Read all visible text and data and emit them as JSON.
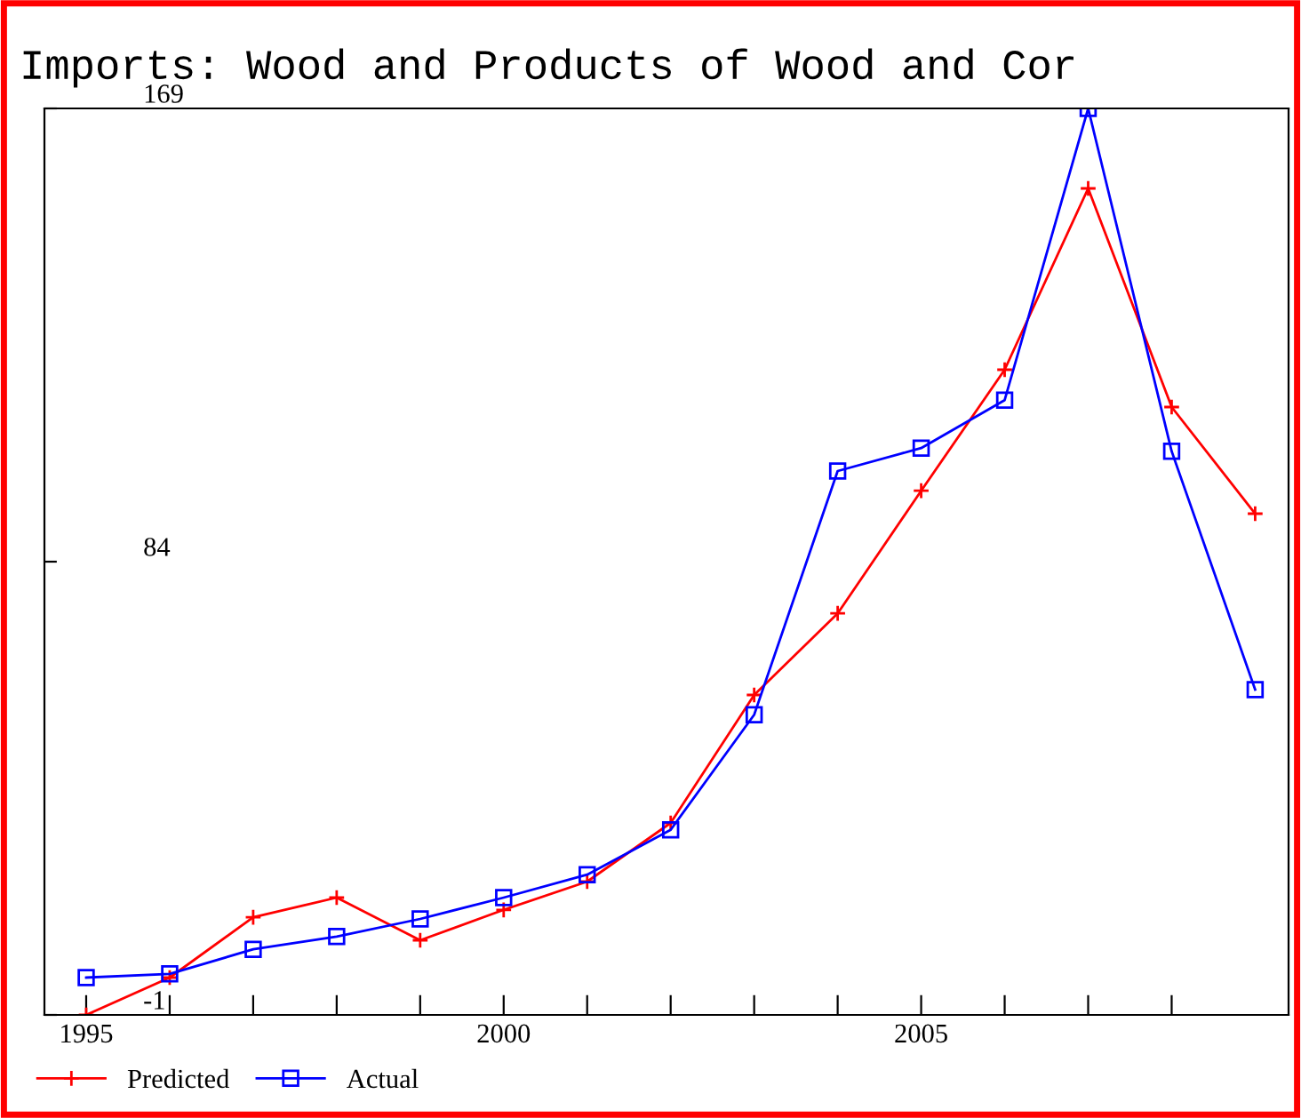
{
  "chart_data": {
    "type": "line",
    "title": "Imports: Wood and Products of Wood and Cor",
    "x": [
      1995,
      1996,
      1997,
      1998,
      1999,
      2000,
      2001,
      2002,
      2003,
      2004,
      2005,
      2006,
      2007,
      2008,
      2009
    ],
    "series": [
      {
        "name": "Predicted",
        "color": "#ff0000",
        "marker": "cross",
        "values": [
          -1,
          6,
          17.3,
          21,
          13,
          18.7,
          24,
          35,
          59,
          74.3,
          97.3,
          120,
          154,
          113,
          93
        ]
      },
      {
        "name": "Actual",
        "color": "#0000ff",
        "marker": "square",
        "values": [
          6,
          6.7,
          11.3,
          13.7,
          17,
          21,
          25.3,
          33.7,
          55.3,
          101,
          105.3,
          114.3,
          169,
          104.7,
          60
        ]
      }
    ],
    "xlim": [
      1994.5,
      2009.4
    ],
    "xticks": [
      1995,
      {
        "value": 1996,
        "label": null
      },
      {
        "value": 1997,
        "label": null
      },
      {
        "value": 1998,
        "label": null
      },
      {
        "value": 1999,
        "label": null
      },
      2000,
      {
        "value": 2001,
        "label": null
      },
      {
        "value": 2002,
        "label": null
      },
      {
        "value": 2003,
        "label": null
      },
      {
        "value": 2004,
        "label": null
      },
      2005,
      {
        "value": 2006,
        "label": null
      },
      {
        "value": 2007,
        "label": null
      },
      {
        "value": 2008,
        "label": null
      }
    ],
    "ylim": [
      -1,
      169
    ],
    "yticks": [
      -1,
      84,
      169
    ],
    "grid": false,
    "legend": "bottom left"
  }
}
